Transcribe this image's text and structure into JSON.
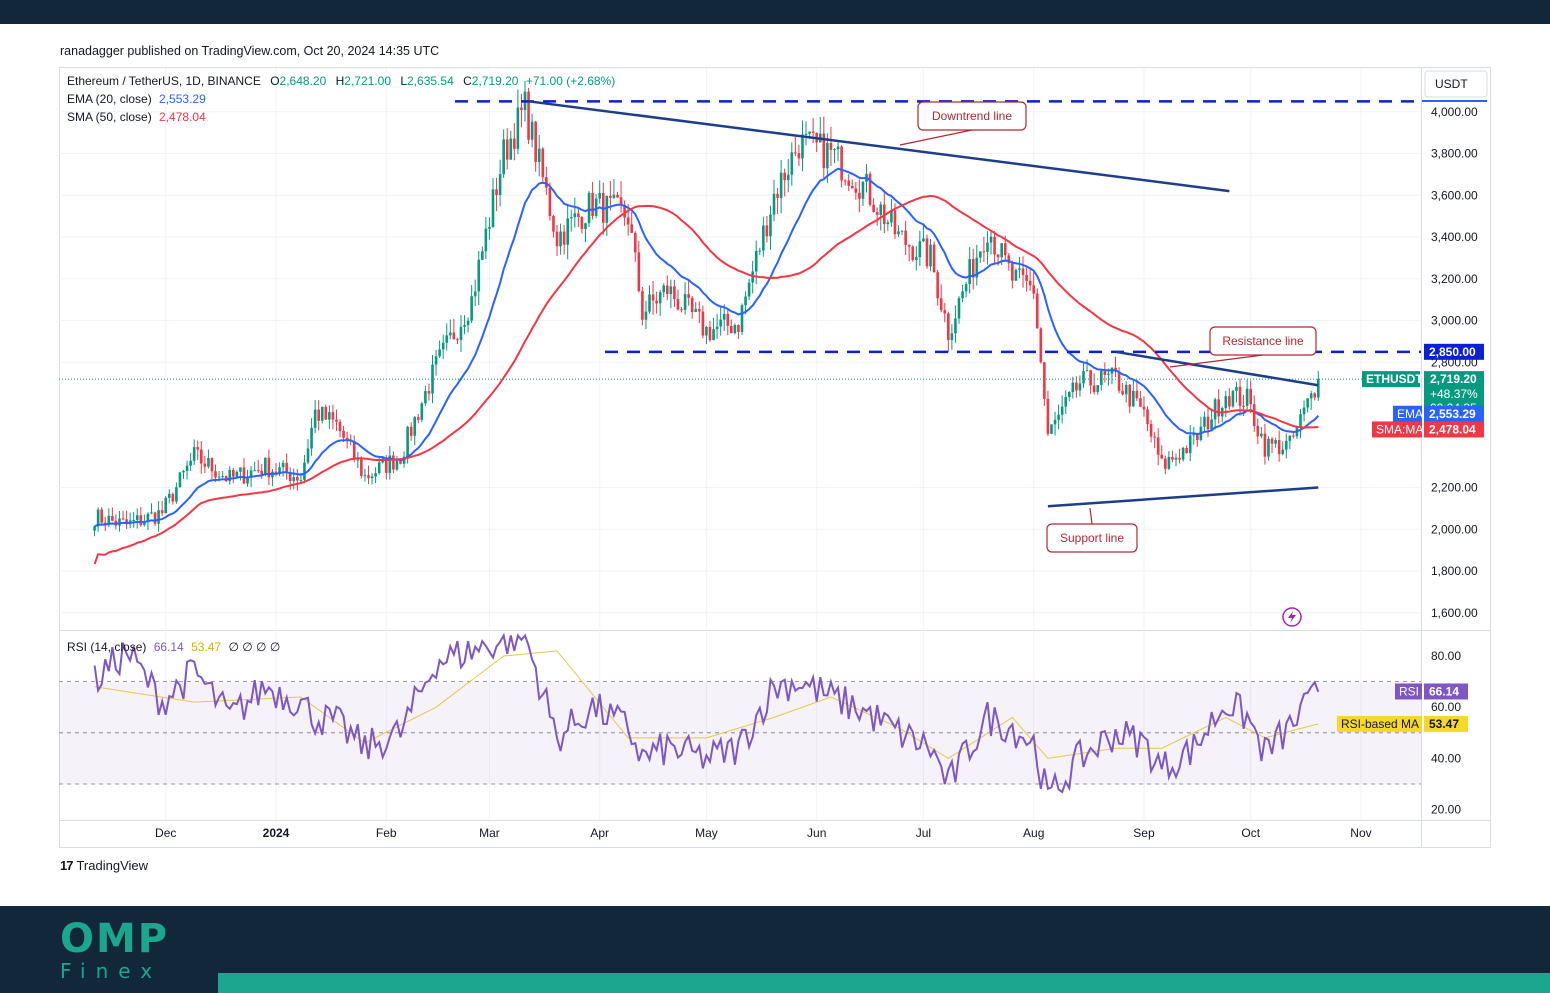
{
  "publisher": "ranadagger published on TradingView.com, Oct 20, 2024 14:35 UTC",
  "legend": {
    "symbol": "Ethereum / TetherUS, 1D, BINANCE",
    "o_label": "O",
    "o": "2,648.20",
    "h_label": "H",
    "h": "2,721.00",
    "l_label": "L",
    "l": "2,635.54",
    "c_label": "C",
    "c": "2,719.20",
    "change": "+71.00 (+2.68%)",
    "ema_label": "EMA (20, close)",
    "ema": "2,553.29",
    "sma_label": "SMA (50, close)",
    "sma": "2,478.04",
    "rsi_label": "RSI (14, close)",
    "rsi": "66.14",
    "rsi_ma": "53.47",
    "rsi_extra": "∅ ∅ ∅ ∅"
  },
  "currency": "USDT",
  "tv_brand": "TradingView",
  "brand": {
    "main": "OMP",
    "sub": "Finex"
  },
  "colors": {
    "up": "#089981",
    "down": "#f23645",
    "ema": "#2962ff",
    "sma": "#f23645",
    "rsi": "#7e57c2",
    "rsi_ma": "#e5c84a",
    "trend": "#1e3d8a",
    "dash": "#0b1fd4",
    "callout": "#b22833"
  },
  "chart_data": [
    {
      "type": "candlestick",
      "title": "Ethereum / TetherUS, 1D, BINANCE",
      "ylim": [
        1500,
        4100
      ],
      "y_ticks": [
        "4,000.00",
        "3,800.00",
        "3,600.00",
        "3,400.00",
        "3,200.00",
        "3,000.00",
        "2,800.00",
        "2,200.00",
        "2,000.00",
        "1,800.00",
        "1,600.00"
      ],
      "y_tick_values": [
        4000,
        3800,
        3600,
        3400,
        3200,
        3000,
        2800,
        2200,
        2000,
        1800,
        1600
      ],
      "x_ticks": [
        "Dec",
        "2024",
        "Feb",
        "Mar",
        "Apr",
        "May",
        "Jun",
        "Jul",
        "Aug",
        "Sep",
        "Oct",
        "Nov"
      ],
      "x_tick_dates": [
        "2023-12-01",
        "2024-01-01",
        "2024-02-01",
        "2024-03-01",
        "2024-04-01",
        "2024-05-01",
        "2024-06-01",
        "2024-07-01",
        "2024-08-01",
        "2024-09-01",
        "2024-10-01",
        "2024-11-01"
      ],
      "close_series": {
        "dates": [
          "2023-11-11",
          "2023-11-20",
          "2023-11-30",
          "2023-12-09",
          "2023-12-19",
          "2023-12-29",
          "2024-01-08",
          "2024-01-12",
          "2024-01-18",
          "2024-01-26",
          "2024-02-05",
          "2024-02-15",
          "2024-02-25",
          "2024-03-05",
          "2024-03-11",
          "2024-03-20",
          "2024-03-30",
          "2024-04-09",
          "2024-04-13",
          "2024-04-20",
          "2024-05-01",
          "2024-05-10",
          "2024-05-20",
          "2024-05-27",
          "2024-06-05",
          "2024-06-15",
          "2024-06-24",
          "2024-07-03",
          "2024-07-08",
          "2024-07-19",
          "2024-07-26",
          "2024-08-01",
          "2024-08-05",
          "2024-08-14",
          "2024-08-24",
          "2024-09-01",
          "2024-09-06",
          "2024-09-15",
          "2024-09-24",
          "2024-09-30",
          "2024-10-05",
          "2024-10-12",
          "2024-10-20"
        ],
        "close": [
          2060,
          2020,
          2080,
          2350,
          2240,
          2300,
          2250,
          2560,
          2500,
          2250,
          2350,
          2780,
          3100,
          3800,
          4020,
          3400,
          3560,
          3500,
          3040,
          3150,
          2950,
          2990,
          3600,
          3850,
          3800,
          3630,
          3400,
          3300,
          2950,
          3450,
          3200,
          3150,
          2450,
          2700,
          2720,
          2550,
          2300,
          2420,
          2650,
          2620,
          2400,
          2400,
          2719.2
        ]
      },
      "ema": {
        "label": "EMA",
        "value": "2,553.29"
      },
      "sma": {
        "label": "SMA:MA",
        "value": "2,478.04"
      },
      "last": {
        "symbol": "ETHUSDT",
        "price": "2,719.20",
        "change": "+48.37%",
        "countdown": "09:24:35"
      },
      "levels": [
        {
          "value": 2850,
          "label": "2,850.00"
        },
        {
          "value": 4050
        }
      ],
      "trend_lines": {
        "downtrend": {
          "from": [
            "2024-03-12",
            4050
          ],
          "to": [
            "2024-09-25",
            3620
          ]
        },
        "resistance": {
          "from": [
            "2024-08-24",
            2850
          ],
          "to": [
            "2024-10-20",
            2690
          ]
        },
        "support": {
          "from": [
            "2024-08-05",
            2110
          ],
          "to": [
            "2024-10-20",
            2200
          ]
        }
      },
      "annotations": [
        "Downtrend line",
        "Resistance line",
        "Support line"
      ]
    },
    {
      "type": "line",
      "title": "RSI (14, close)",
      "ylim": [
        14,
        92
      ],
      "y_ticks": [
        "80.00",
        "60.00",
        "40.00",
        "20.00"
      ],
      "y_tick_values": [
        80,
        60,
        40,
        20
      ],
      "bands": [
        70,
        50,
        30
      ],
      "series": [
        {
          "name": "RSI",
          "value": "66.14",
          "dates": [
            "2023-11-11",
            "2023-11-20",
            "2023-11-30",
            "2023-12-09",
            "2023-12-19",
            "2023-12-29",
            "2024-01-08",
            "2024-01-12",
            "2024-01-18",
            "2024-01-26",
            "2024-02-05",
            "2024-02-15",
            "2024-02-25",
            "2024-03-05",
            "2024-03-11",
            "2024-03-20",
            "2024-03-30",
            "2024-04-09",
            "2024-04-13",
            "2024-04-20",
            "2024-05-01",
            "2024-05-10",
            "2024-05-20",
            "2024-05-27",
            "2024-06-05",
            "2024-06-15",
            "2024-06-24",
            "2024-07-03",
            "2024-07-08",
            "2024-07-19",
            "2024-07-26",
            "2024-08-01",
            "2024-08-05",
            "2024-08-14",
            "2024-08-24",
            "2024-09-01",
            "2024-09-06",
            "2024-09-15",
            "2024-09-24",
            "2024-09-30",
            "2024-10-05",
            "2024-10-12",
            "2024-10-20"
          ],
          "values": [
            70,
            82,
            62,
            74,
            56,
            68,
            62,
            56,
            54,
            44,
            50,
            78,
            82,
            86,
            88,
            48,
            60,
            52,
            40,
            44,
            40,
            44,
            68,
            70,
            64,
            58,
            50,
            44,
            30,
            56,
            52,
            46,
            24,
            40,
            50,
            46,
            36,
            44,
            62,
            56,
            42,
            52,
            66
          ]
        },
        {
          "name": "RSI-based MA",
          "value": "53.47",
          "dates": [
            "2023-11-11",
            "2023-12-09",
            "2024-01-08",
            "2024-01-26",
            "2024-02-15",
            "2024-03-05",
            "2024-03-20",
            "2024-04-09",
            "2024-05-01",
            "2024-05-20",
            "2024-06-05",
            "2024-06-24",
            "2024-07-08",
            "2024-07-26",
            "2024-08-05",
            "2024-08-24",
            "2024-09-06",
            "2024-09-24",
            "2024-10-05",
            "2024-10-20"
          ],
          "values": [
            68,
            62,
            64,
            46,
            60,
            80,
            82,
            48,
            48,
            56,
            64,
            52,
            40,
            56,
            40,
            44,
            44,
            56,
            48,
            53.47
          ]
        }
      ]
    }
  ]
}
